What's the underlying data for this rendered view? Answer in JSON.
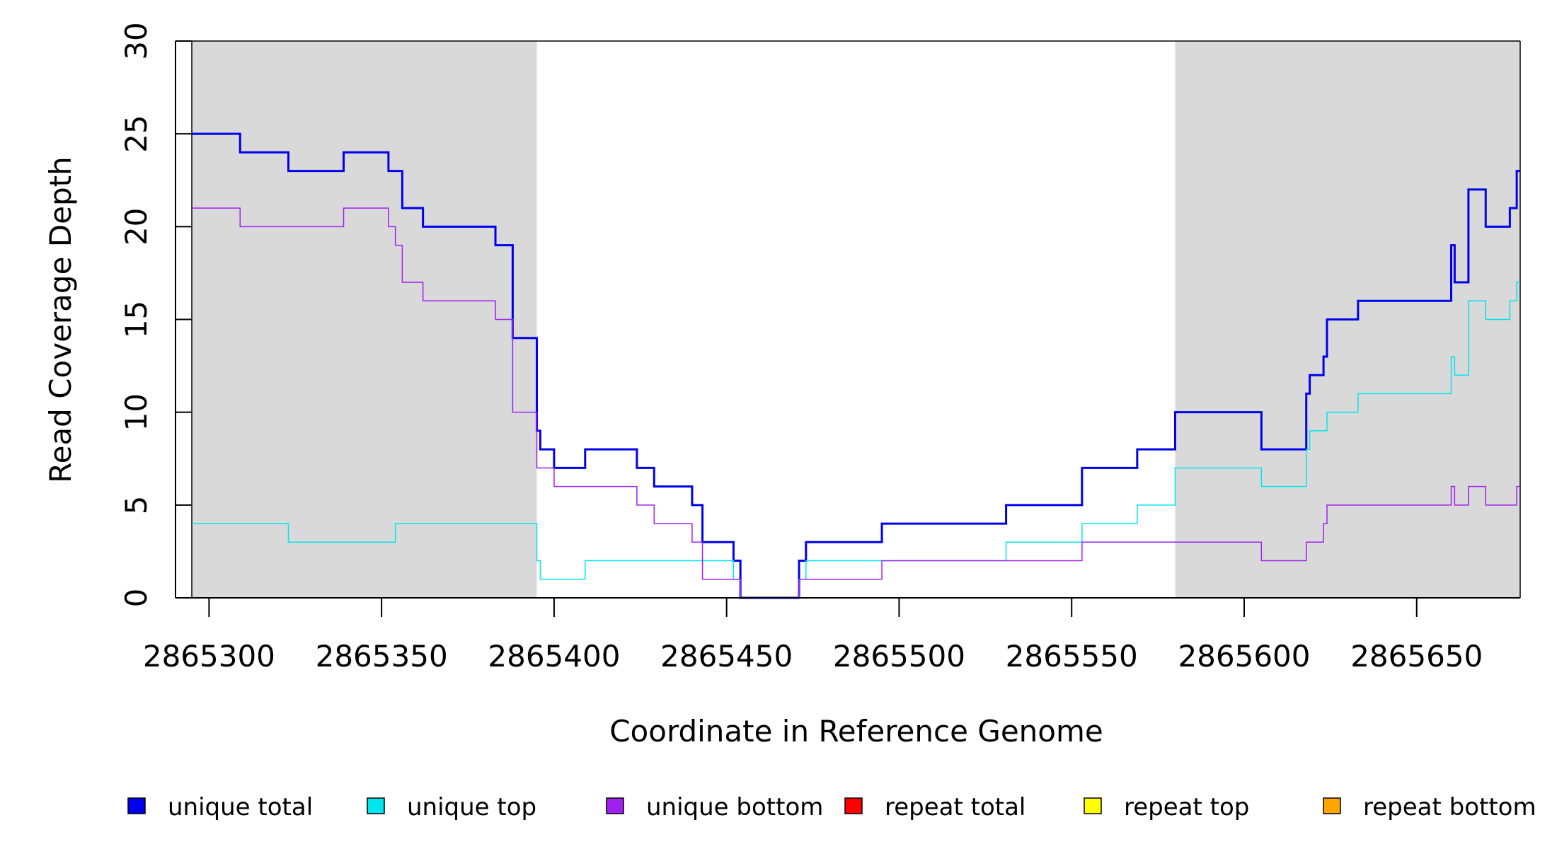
{
  "chart_data": {
    "type": "line",
    "xlabel": "Coordinate in Reference Genome",
    "ylabel": "Read Coverage Depth",
    "xlim": [
      2865295,
      2865680
    ],
    "ylim": [
      0,
      30
    ],
    "xticks": [
      2865300,
      2865350,
      2865400,
      2865450,
      2865500,
      2865550,
      2865600,
      2865650
    ],
    "xtick_labels": [
      "2865300",
      "2865350",
      "2865400",
      "2865450",
      "2865500",
      "2865550",
      "2865600",
      "2865650"
    ],
    "yticks": [
      0,
      5,
      10,
      15,
      20,
      25,
      30
    ],
    "ytick_labels": [
      "0",
      "5",
      "10",
      "15",
      "20",
      "25",
      "30"
    ],
    "shaded_regions": [
      {
        "from": 2865295,
        "to": 2865395,
        "color": "#d9d9d9"
      },
      {
        "from": 2865580,
        "to": 2865680,
        "color": "#d9d9d9"
      }
    ],
    "legend_position": "bottom",
    "series": [
      {
        "name": "unique total",
        "color": "#0000ee",
        "width": 3,
        "step": true,
        "points": [
          [
            2865295,
            25
          ],
          [
            2865309,
            24
          ],
          [
            2865323,
            23
          ],
          [
            2865339,
            24
          ],
          [
            2865352,
            23
          ],
          [
            2865356,
            21
          ],
          [
            2865362,
            20
          ],
          [
            2865383,
            19
          ],
          [
            2865388,
            14
          ],
          [
            2865395,
            9
          ],
          [
            2865396,
            8
          ],
          [
            2865400,
            7
          ],
          [
            2865409,
            8
          ],
          [
            2865424,
            7
          ],
          [
            2865429,
            6
          ],
          [
            2865440,
            5
          ],
          [
            2865443,
            3
          ],
          [
            2865452,
            2
          ],
          [
            2865454,
            0
          ],
          [
            2865471,
            2
          ],
          [
            2865473,
            3
          ],
          [
            2865495,
            4
          ],
          [
            2865531,
            5
          ],
          [
            2865553,
            7
          ],
          [
            2865569,
            8
          ],
          [
            2865580,
            10
          ],
          [
            2865605,
            8
          ],
          [
            2865618,
            11
          ],
          [
            2865619,
            12
          ],
          [
            2865623,
            13
          ],
          [
            2865624,
            15
          ],
          [
            2865633,
            16
          ],
          [
            2865660,
            19
          ],
          [
            2865661,
            17
          ],
          [
            2865665,
            22
          ],
          [
            2865670,
            20
          ],
          [
            2865677,
            21
          ],
          [
            2865679,
            23
          ]
        ]
      },
      {
        "name": "unique top",
        "color": "#00e5ee",
        "width": 1.5,
        "step": true,
        "points": [
          [
            2865295,
            4
          ],
          [
            2865323,
            3
          ],
          [
            2865354,
            4
          ],
          [
            2865395,
            2
          ],
          [
            2865396,
            1
          ],
          [
            2865409,
            2
          ],
          [
            2865452,
            1
          ],
          [
            2865454,
            0
          ],
          [
            2865471,
            1
          ],
          [
            2865473,
            2
          ],
          [
            2865531,
            3
          ],
          [
            2865553,
            4
          ],
          [
            2865569,
            5
          ],
          [
            2865580,
            7
          ],
          [
            2865605,
            6
          ],
          [
            2865618,
            8
          ],
          [
            2865619,
            9
          ],
          [
            2865624,
            10
          ],
          [
            2865633,
            11
          ],
          [
            2865660,
            13
          ],
          [
            2865661,
            12
          ],
          [
            2865665,
            16
          ],
          [
            2865670,
            15
          ],
          [
            2865677,
            16
          ],
          [
            2865679,
            17
          ]
        ]
      },
      {
        "name": "unique bottom",
        "color": "#a020f0",
        "width": 1.5,
        "step": true,
        "points": [
          [
            2865295,
            21
          ],
          [
            2865309,
            20
          ],
          [
            2865339,
            21
          ],
          [
            2865352,
            20
          ],
          [
            2865354,
            19
          ],
          [
            2865356,
            17
          ],
          [
            2865362,
            16
          ],
          [
            2865383,
            15
          ],
          [
            2865388,
            10
          ],
          [
            2865395,
            7
          ],
          [
            2865400,
            6
          ],
          [
            2865424,
            5
          ],
          [
            2865429,
            4
          ],
          [
            2865440,
            3
          ],
          [
            2865443,
            1
          ],
          [
            2865454,
            0
          ],
          [
            2865471,
            1
          ],
          [
            2865495,
            2
          ],
          [
            2865553,
            3
          ],
          [
            2865605,
            2
          ],
          [
            2865618,
            3
          ],
          [
            2865623,
            4
          ],
          [
            2865624,
            5
          ],
          [
            2865660,
            6
          ],
          [
            2865661,
            5
          ],
          [
            2865665,
            6
          ],
          [
            2865670,
            5
          ],
          [
            2865679,
            6
          ]
        ]
      },
      {
        "name": "repeat total",
        "color": "#ff0000",
        "width": 2,
        "step": true,
        "points": [
          [
            2865295,
            0
          ],
          [
            2865680,
            0
          ]
        ]
      },
      {
        "name": "repeat top",
        "color": "#ffff00",
        "width": 2,
        "step": true,
        "points": [
          [
            2865295,
            0
          ],
          [
            2865680,
            0
          ]
        ]
      },
      {
        "name": "repeat bottom",
        "color": "#ffa500",
        "width": 2,
        "step": true,
        "points": [
          [
            2865295,
            0
          ],
          [
            2865680,
            0
          ]
        ]
      }
    ]
  }
}
